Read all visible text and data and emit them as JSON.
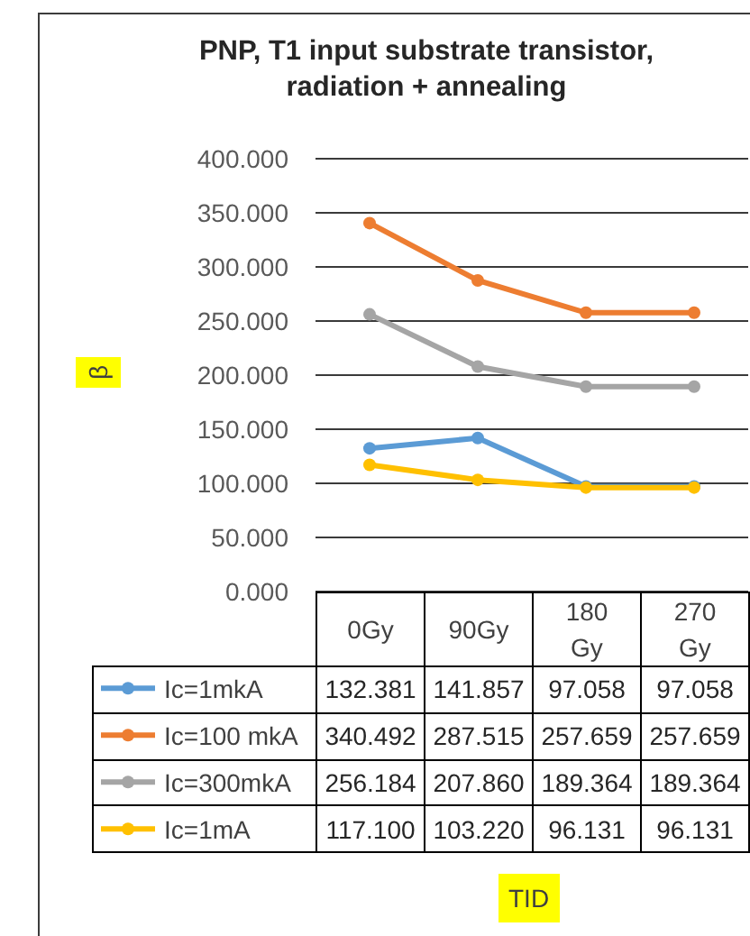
{
  "chart_data": {
    "type": "line",
    "title": "PNP, T1 input substrate transistor, radiation + annealing",
    "ylabel": "β",
    "annotations": [
      "TID"
    ],
    "categories": [
      "0Gy",
      "90Gy",
      "180 Gy",
      "270 Gy"
    ],
    "series": [
      {
        "name": "Ic=1mkA",
        "color": "#5b9bd5",
        "values": [
          132.381,
          141.857,
          97.058,
          97.058
        ],
        "value_labels": [
          "132.381",
          "141.857",
          "97.058",
          "97.058"
        ]
      },
      {
        "name": "Ic=100 mkA",
        "color": "#ed7d31",
        "values": [
          340.492,
          287.515,
          257.659,
          257.659
        ],
        "value_labels": [
          "340.492",
          "287.515",
          "257.659",
          "257.659"
        ]
      },
      {
        "name": "Ic=300mkA",
        "color": "#a5a5a5",
        "values": [
          256.184,
          207.86,
          189.364,
          189.364
        ],
        "value_labels": [
          "256.184",
          "207.860",
          "189.364",
          "189.364"
        ]
      },
      {
        "name": "Ic=1mA",
        "color": "#ffc000",
        "values": [
          117.1,
          103.22,
          96.131,
          96.131
        ],
        "value_labels": [
          "117.100",
          "103.220",
          "96.131",
          "96.131"
        ]
      }
    ],
    "ylim": [
      0,
      400
    ],
    "yticks": [
      {
        "value": 0,
        "label": "0.000"
      },
      {
        "value": 50,
        "label": "50.000"
      },
      {
        "value": 100,
        "label": "100.000"
      },
      {
        "value": 150,
        "label": "150.000"
      },
      {
        "value": 200,
        "label": "200.000"
      },
      {
        "value": 250,
        "label": "250.000"
      },
      {
        "value": 300,
        "label": "300.000"
      },
      {
        "value": 350,
        "label": "350.000"
      },
      {
        "value": 400,
        "label": "400.000"
      }
    ],
    "grid": "y",
    "legend": "bottom left",
    "marker": "circle",
    "line_style": "solid"
  }
}
